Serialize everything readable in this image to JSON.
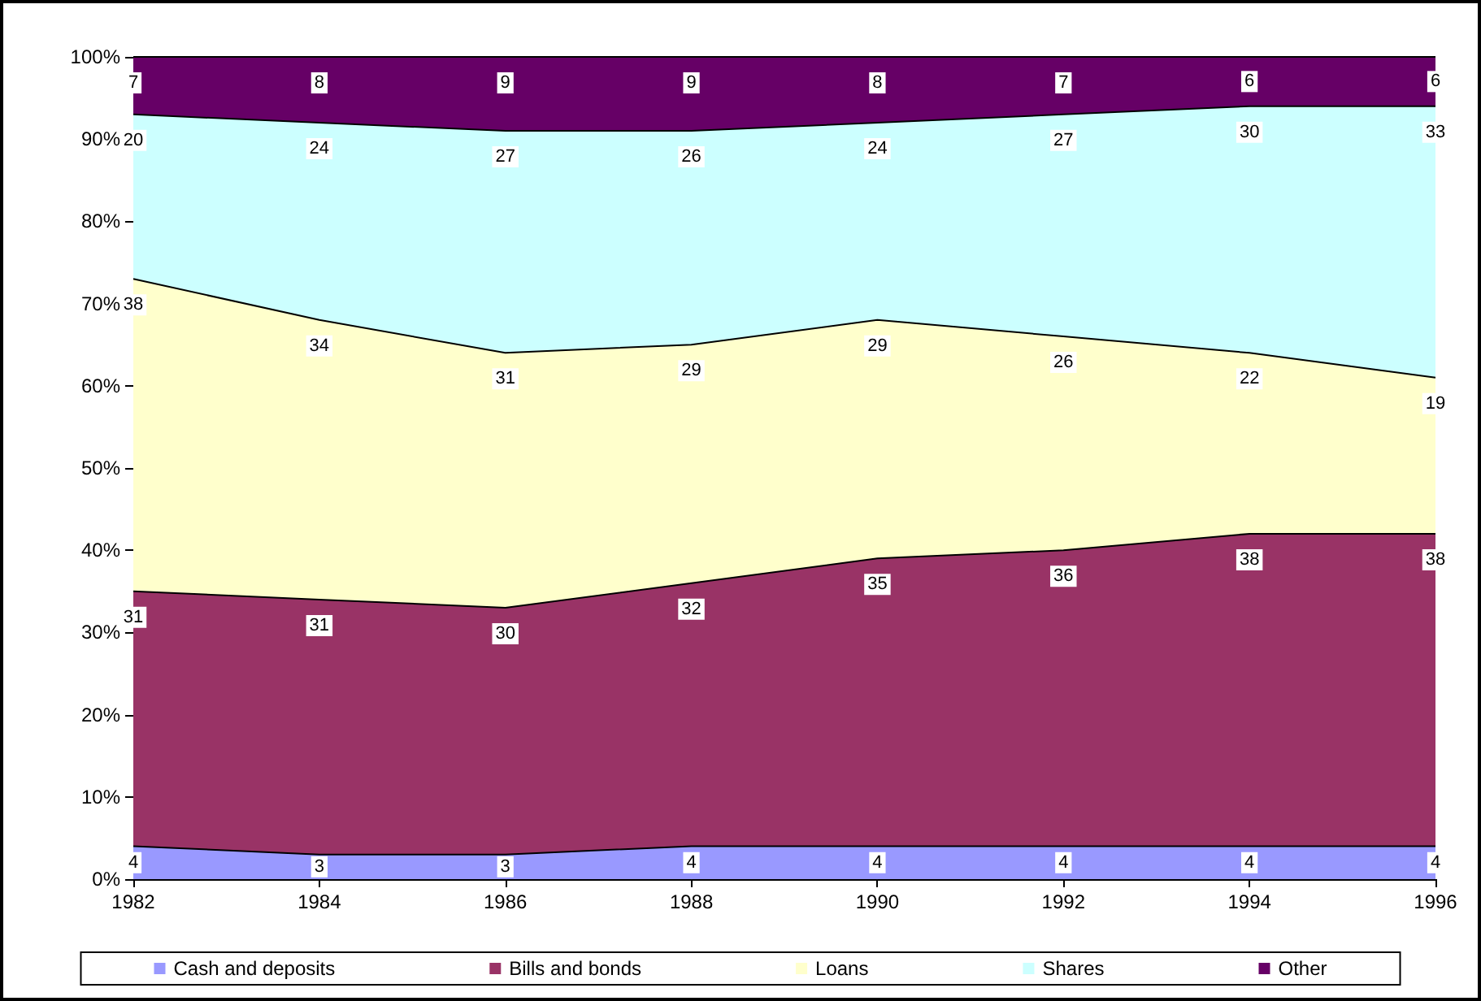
{
  "chart_data": {
    "type": "area",
    "stacked": true,
    "data_labels": true,
    "grid": false,
    "legend": "bottom",
    "marker": "none",
    "categories": [
      "1982",
      "1984",
      "1986",
      "1988",
      "1990",
      "1992",
      "1994",
      "1996"
    ],
    "ylim": [
      0,
      100
    ],
    "yticks": [
      {
        "value": 0,
        "label": "0%"
      },
      {
        "value": 10,
        "label": "10%"
      },
      {
        "value": 20,
        "label": "20%"
      },
      {
        "value": 30,
        "label": "30%"
      },
      {
        "value": 40,
        "label": "40%"
      },
      {
        "value": 50,
        "label": "50%"
      },
      {
        "value": 60,
        "label": "60%"
      },
      {
        "value": 70,
        "label": "70%"
      },
      {
        "value": 80,
        "label": "80%"
      },
      {
        "value": 90,
        "label": "90%"
      },
      {
        "value": 100,
        "label": "100%"
      }
    ],
    "series": [
      {
        "name": "Cash and deposits",
        "color": "#9999ff",
        "values": [
          4,
          3,
          3,
          4,
          4,
          4,
          4,
          4
        ]
      },
      {
        "name": "Bills and bonds",
        "color": "#993366",
        "values": [
          31,
          31,
          30,
          32,
          35,
          36,
          38,
          38
        ]
      },
      {
        "name": "Loans",
        "color": "#ffffcc",
        "values": [
          38,
          34,
          31,
          29,
          29,
          26,
          22,
          19
        ]
      },
      {
        "name": "Shares",
        "color": "#ccffff",
        "values": [
          20,
          24,
          27,
          26,
          24,
          27,
          30,
          33
        ]
      },
      {
        "name": "Other",
        "color": "#660066",
        "values": [
          7,
          8,
          9,
          9,
          8,
          7,
          6,
          6
        ]
      }
    ]
  }
}
